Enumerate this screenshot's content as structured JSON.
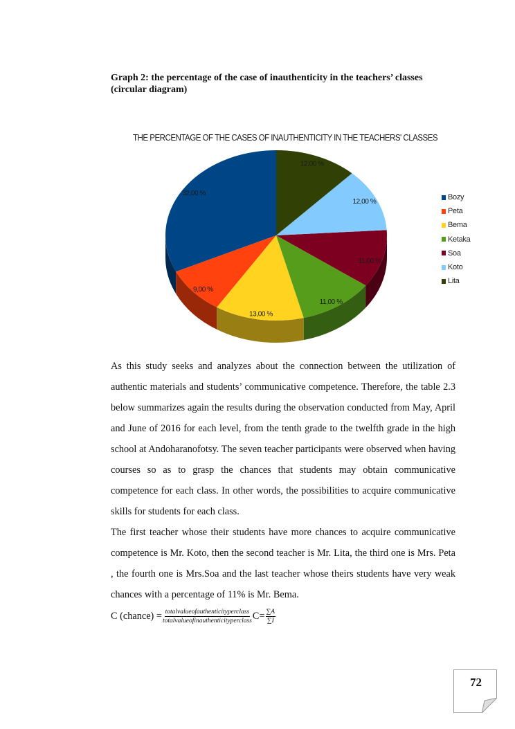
{
  "heading": "Graph 2: the percentage of the case of inauthenticity in the teachers’ classes (circular diagram)",
  "chart_data": {
    "type": "pie",
    "title": "THE PERCENTAGE OF THE CASES OF INAUTHENTICITY IN THE TEACHERS' CLASSES",
    "legend_position": "right",
    "style": "3d",
    "categories": [
      "Bozy",
      "Peta",
      "Bema",
      "Ketaka",
      "Soa",
      "Koto",
      "Lita"
    ],
    "values": [
      32,
      9,
      13,
      11,
      11,
      12,
      12
    ],
    "labels": [
      "32,00 %",
      "9,00 %",
      "13,00 %",
      "11,00 %",
      "11,00 %",
      "12,00 %",
      "12,00 %"
    ],
    "colors": [
      "#004586",
      "#ff420e",
      "#ffd320",
      "#579d1c",
      "#7e0021",
      "#83caff",
      "#314004"
    ]
  },
  "paragraphs": [
    "As this study seeks and analyzes about the connection between the utilization of authentic materials and students’ communicative competence. Therefore, the table 2.3 below summarizes again the results during the observation conducted from May, April and June of 2016 for each level, from the tenth grade to the twelfth grade in the high school at Andoharanofotsy. The seven teacher participants were observed when having courses so as to grasp the chances that students may obtain communicative competence for each class. In other words, the possibilities to acquire communicative skills for students for each class.",
    "The first teacher whose their students have more chances to acquire communicative competence is Mr. Koto, then the second teacher is Mr. Lita, the third one is Mrs. Peta , the fourth one is Mrs.Soa and the last teacher whose theirs students have very  weak chances  with a percentage of 11%  is Mr. Bema."
  ],
  "formula": {
    "lhs": "C (chance) =",
    "numerator": "totalvalueofauthenticityperclass",
    "denominator": "totalvalueofinauthenticityperclass",
    "rhs": "C=",
    "numerator2": "∑A",
    "denominator2": "∑I"
  },
  "page_number": "72"
}
